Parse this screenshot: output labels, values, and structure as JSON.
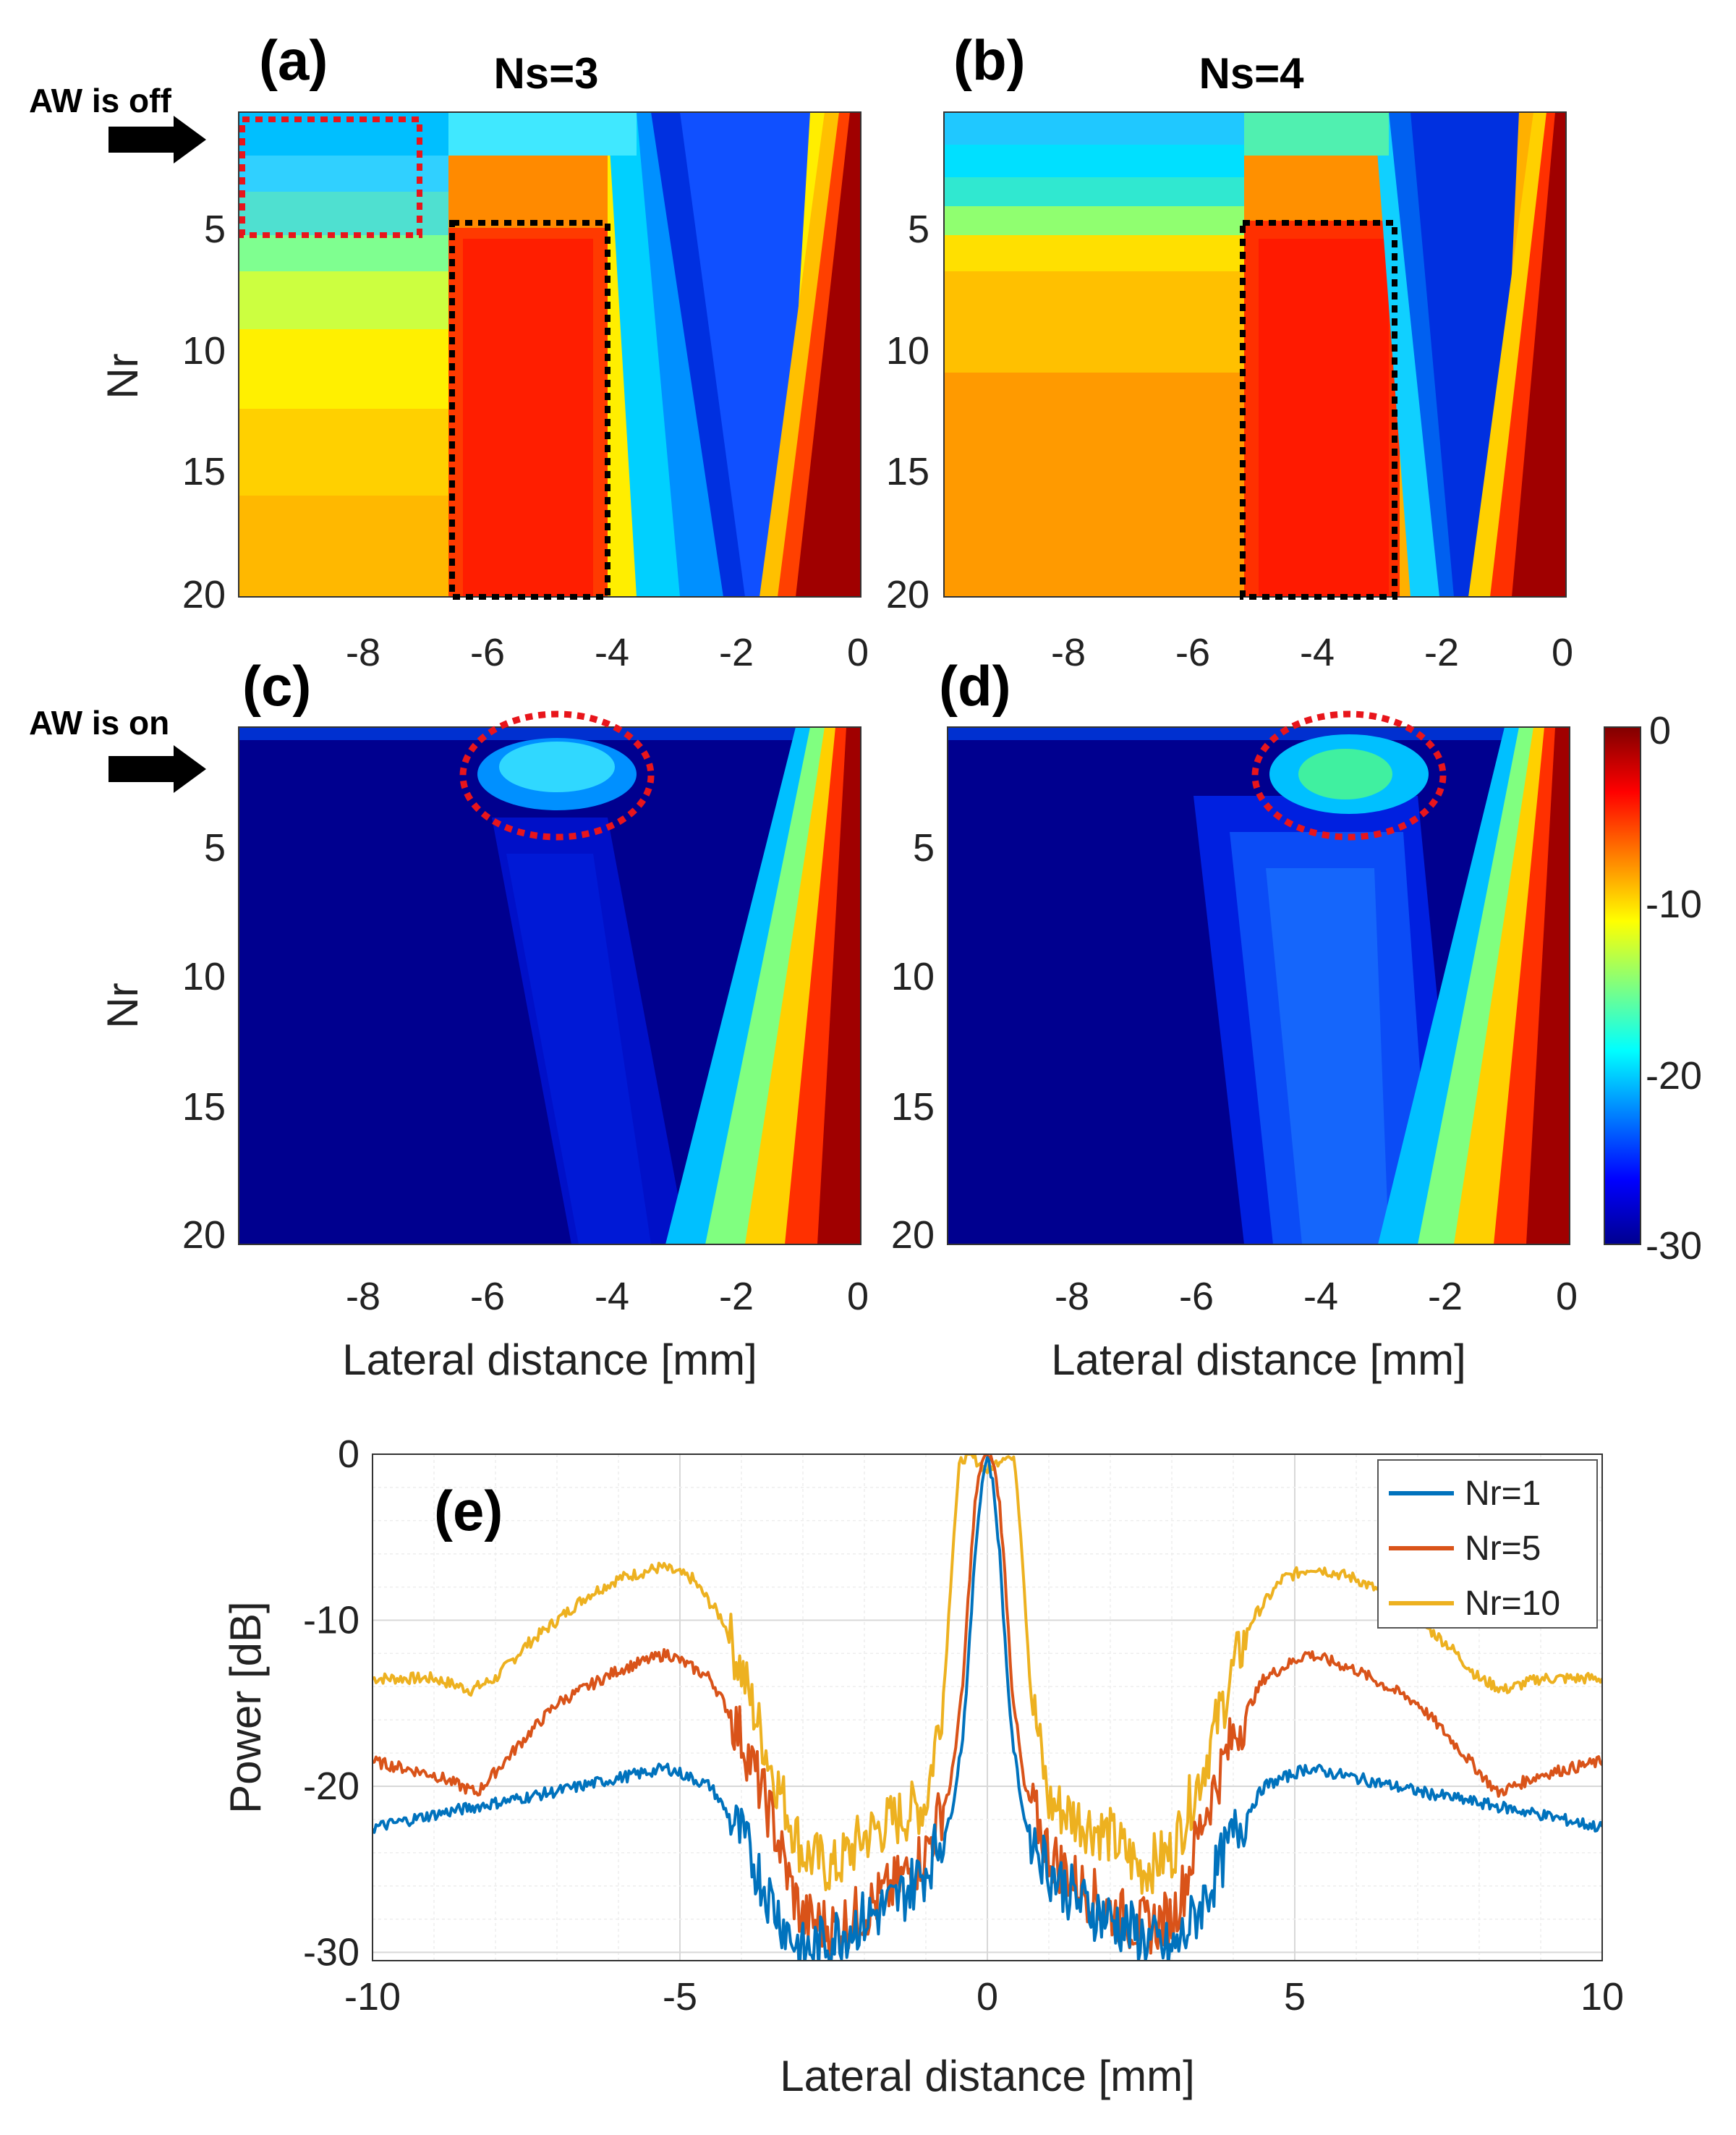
{
  "figure_labels": {
    "a": "(a)",
    "b": "(b)",
    "c": "(c)",
    "d": "(d)",
    "e": "(e)",
    "ns3": "Ns=3",
    "ns4": "Ns=4",
    "aw_off": "AW is off",
    "aw_on": "AW is on"
  },
  "colors": {
    "background": "#ffffff",
    "red_box": "#e8151b",
    "black_box": "#000000",
    "series": [
      "#0072BD",
      "#D95319",
      "#EDB120"
    ]
  },
  "colorbar": {
    "min": -30,
    "max": 0,
    "ticks": [
      "0",
      "-10",
      "-20",
      "-30"
    ],
    "colormap": "jet"
  },
  "chart_data": [
    {
      "panel": "a",
      "type": "heatmap",
      "title": "Ns=3",
      "xlabel": "",
      "ylabel": "Nr",
      "xlim": [
        -10,
        0
      ],
      "ylim": [
        1,
        20
      ],
      "xticks": [
        "-8",
        "-6",
        "-4",
        "-2",
        "0"
      ],
      "yticks": [
        "5",
        "10",
        "15",
        "20"
      ],
      "zlim": [
        -30,
        0
      ],
      "annotations": [
        "red dotted box: Nr 1-5, x -10 to -7",
        "black dotted box: Nr 5-20, x -6.5 to -4"
      ]
    },
    {
      "panel": "b",
      "type": "heatmap",
      "title": "Ns=4",
      "xlabel": "",
      "ylabel": "",
      "xlim": [
        -10,
        0
      ],
      "ylim": [
        1,
        20
      ],
      "xticks": [
        "-8",
        "-6",
        "-4",
        "-2",
        "0"
      ],
      "yticks": [
        "5",
        "10",
        "15",
        "20"
      ],
      "zlim": [
        -30,
        0
      ],
      "annotations": [
        "black dotted box: Nr 5-20, x -5.2 to -2.7"
      ]
    },
    {
      "panel": "c",
      "type": "heatmap",
      "xlabel": "Lateral distance [mm]",
      "ylabel": "Nr",
      "xlim": [
        -10,
        0
      ],
      "ylim": [
        1,
        20
      ],
      "xticks": [
        "-8",
        "-6",
        "-4",
        "-2",
        "0"
      ],
      "yticks": [
        "5",
        "10",
        "15",
        "20"
      ],
      "zlim": [
        -30,
        0
      ],
      "annotations": [
        "red dotted ellipse around x -5, Nr 1-4"
      ]
    },
    {
      "panel": "d",
      "type": "heatmap",
      "xlabel": "Lateral distance [mm]",
      "ylabel": "",
      "xlim": [
        -10,
        0
      ],
      "ylim": [
        1,
        20
      ],
      "xticks": [
        "-8",
        "-6",
        "-4",
        "-2",
        "0"
      ],
      "yticks": [
        "5",
        "10",
        "15",
        "20"
      ],
      "zlim": [
        -30,
        0
      ],
      "annotations": [
        "red dotted ellipse around x -3.5, Nr 1-4"
      ]
    },
    {
      "panel": "e",
      "type": "line",
      "xlabel": "Lateral distance [mm]",
      "ylabel": "Power [dB]",
      "xlim": [
        -10,
        10
      ],
      "ylim": [
        -30.5,
        0
      ],
      "xticks": [
        "-10",
        "-5",
        "0",
        "5",
        "10"
      ],
      "yticks": [
        "0",
        "-10",
        "-20",
        "-30"
      ],
      "grid": true,
      "legend": "top-right",
      "series": [
        {
          "name": "Nr=1",
          "x": [
            -10,
            -9,
            -8,
            -7,
            -6,
            -5.2,
            -4.5,
            -4,
            -3.5,
            -3.2,
            -3,
            -2.7,
            -2.5,
            -2,
            -1.5,
            -1,
            -0.6,
            -0.4,
            -0.3,
            -0.2,
            -0.1,
            0,
            0.1,
            0.2,
            0.3,
            0.4,
            0.6,
            1,
            1.5,
            2,
            2.5,
            2.7,
            3,
            3.2,
            3.5,
            4,
            4.5,
            5.2,
            6,
            7,
            8,
            9,
            10
          ],
          "y": [
            -22.5,
            -21.7,
            -21,
            -20.3,
            -19.5,
            -18.9,
            -20,
            -23,
            -27,
            -29,
            -30,
            -29.5,
            -29,
            -28,
            -27,
            -25,
            -22,
            -17,
            -12,
            -6,
            -2,
            0,
            -2,
            -6,
            -12,
            -17,
            -22,
            -25,
            -27,
            -28,
            -29,
            -29.5,
            -30,
            -29,
            -27,
            -23,
            -20,
            -18.9,
            -19.5,
            -20.3,
            -21,
            -21.7,
            -22.5
          ]
        },
        {
          "name": "Nr=5",
          "x": [
            -10,
            -9,
            -8.3,
            -7.5,
            -7,
            -6,
            -5.2,
            -4.5,
            -4,
            -3.5,
            -3.2,
            -3,
            -2.5,
            -2,
            -1.5,
            -1,
            -0.6,
            -0.4,
            -0.3,
            -0.2,
            -0.1,
            0,
            0.1,
            0.2,
            0.3,
            0.4,
            0.6,
            1,
            1.5,
            2,
            2.5,
            3,
            3.2,
            3.5,
            4,
            4.5,
            5.2,
            6,
            7,
            7.5,
            8.3,
            9,
            10
          ],
          "y": [
            -18.5,
            -19.3,
            -20.4,
            -17,
            -15,
            -13,
            -12,
            -13.5,
            -17,
            -22,
            -26,
            -28,
            -28.5,
            -27.5,
            -26,
            -24,
            -20,
            -14,
            -8,
            -3,
            -0.5,
            0,
            -0.5,
            -3,
            -8,
            -14,
            -20,
            -24,
            -26,
            -27.5,
            -28.5,
            -28,
            -26,
            -22,
            -17,
            -13.5,
            -12,
            -13,
            -15,
            -17,
            -20.4,
            -19.3,
            -18.5
          ]
        },
        {
          "name": "Nr=10",
          "x": [
            -10,
            -9,
            -8.4,
            -8,
            -7.5,
            -7,
            -6.5,
            -6,
            -5.3,
            -4.8,
            -4.3,
            -4,
            -3.5,
            -3,
            -2.5,
            -2,
            -1.5,
            -1,
            -0.7,
            -0.55,
            -0.45,
            -0.3,
            -0.15,
            0,
            0.15,
            0.3,
            0.45,
            0.55,
            0.7,
            1,
            1.5,
            2,
            2.5,
            3,
            3.5,
            4,
            4.3,
            4.8,
            5.3,
            6,
            6.5,
            7,
            7.5,
            8,
            8.4,
            9,
            10
          ],
          "y": [
            -13.5,
            -13.5,
            -14.2,
            -13.5,
            -11.5,
            -10,
            -8.5,
            -7.5,
            -6.8,
            -7.5,
            -10,
            -13,
            -19,
            -24,
            -25,
            -23,
            -22,
            -21,
            -14,
            -5,
            -0.5,
            0,
            -0.5,
            -1,
            -0.5,
            0,
            -0.5,
            -5,
            -14,
            -21,
            -22,
            -23,
            -25,
            -24,
            -19,
            -13,
            -10,
            -7.5,
            -6.8,
            -7.5,
            -8.5,
            -10,
            -11.5,
            -13.5,
            -14.2,
            -13.5,
            -13.5
          ]
        }
      ]
    }
  ]
}
